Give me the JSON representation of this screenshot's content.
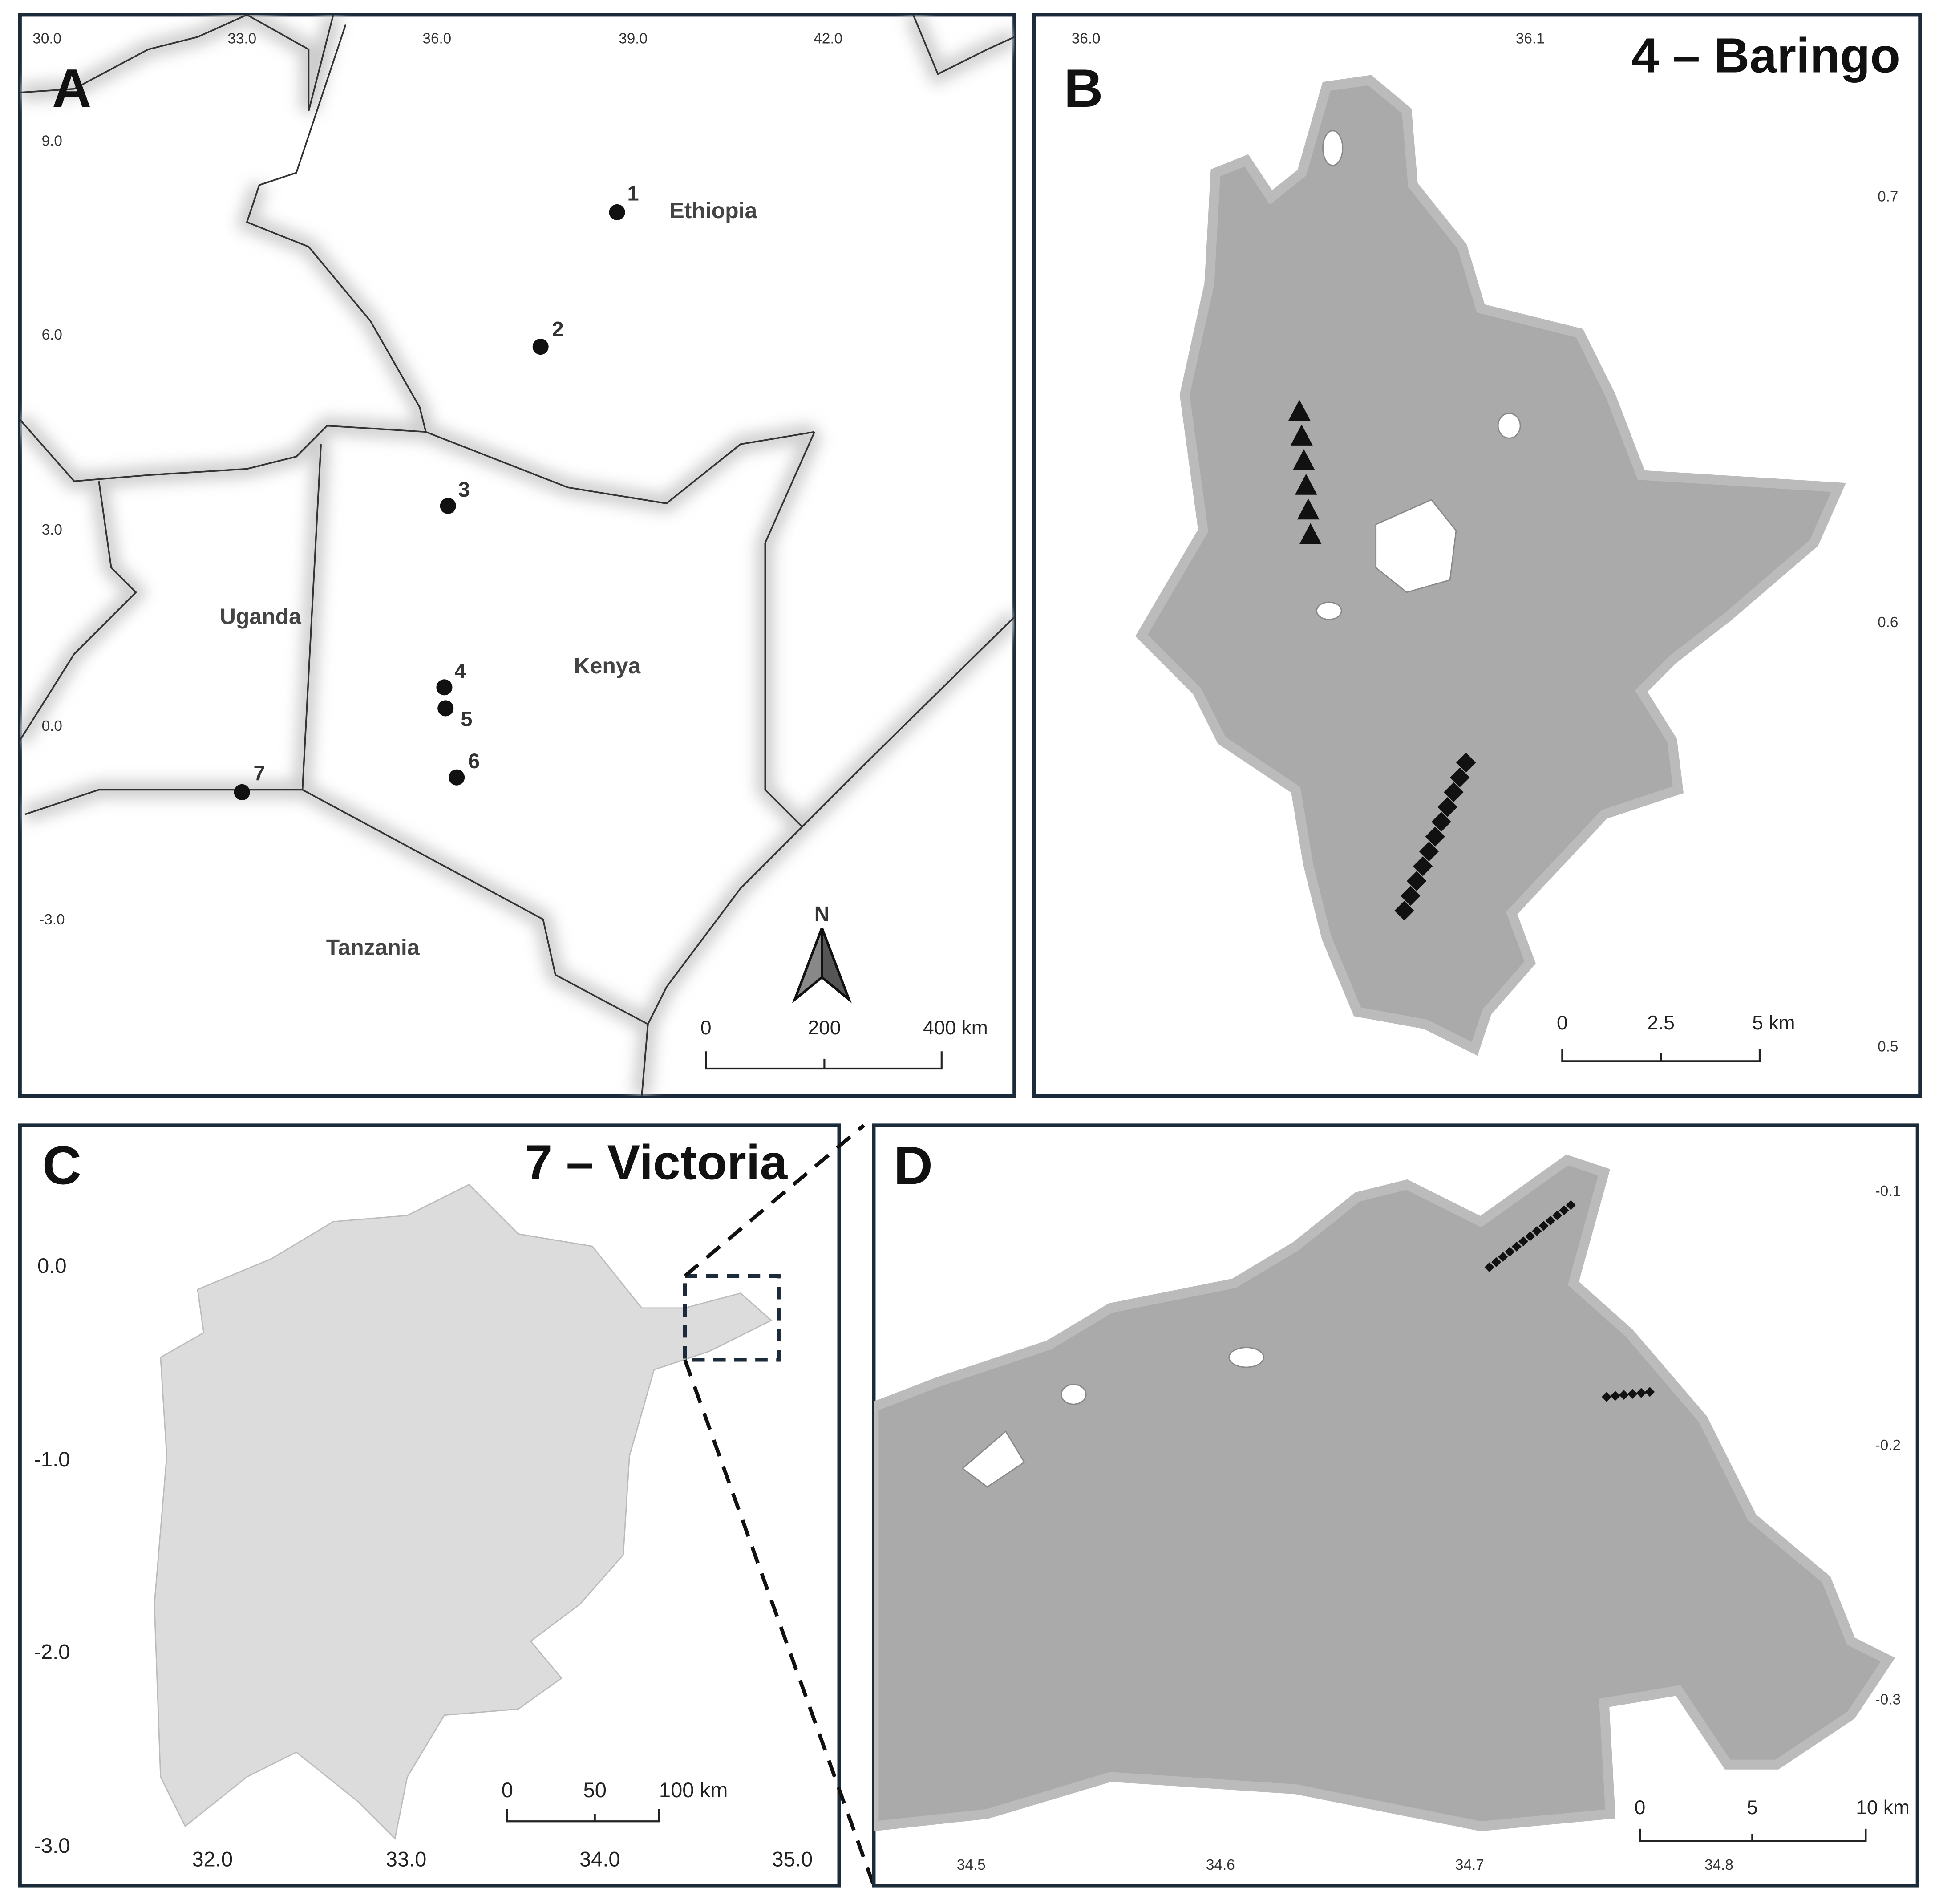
{
  "panels": [
    {
      "label": "A",
      "x_ticks": [
        "30.0",
        "33.0",
        "36.0",
        "39.0",
        "42.0"
      ],
      "y_ticks": [
        "9.0",
        "6.0",
        "3.0",
        "0.0",
        "-3.0"
      ],
      "countries": [
        "Ethiopia",
        "Uganda",
        "Kenya",
        "Tanzania"
      ],
      "sites": [
        "1",
        "2",
        "3",
        "4",
        "5",
        "6",
        "7"
      ],
      "north": "N",
      "scale_bar": [
        "0",
        "200",
        "400 km"
      ]
    },
    {
      "label": "B",
      "title": "4 – Baringo",
      "x_ticks": [
        "36.0",
        "36.1"
      ],
      "y_ticks": [
        "0.7",
        "0.6",
        "0.5"
      ],
      "scale_bar": [
        "0",
        "2.5",
        "5 km"
      ]
    },
    {
      "label": "C",
      "title": "7 – Victoria",
      "x_ticks": [
        "32.0",
        "33.0",
        "34.0",
        "35.0"
      ],
      "y_ticks": [
        "0.0",
        "-1.0",
        "-2.0",
        "-3.0"
      ],
      "scale_bar": [
        "0",
        "50",
        "100 km"
      ]
    },
    {
      "label": "D",
      "x_ticks": [
        "34.5",
        "34.6",
        "34.7",
        "34.8"
      ],
      "y_ticks": [
        "-0.1",
        "-0.2",
        "-0.3"
      ],
      "scale_bar": [
        "0",
        "5",
        "10 km"
      ]
    }
  ]
}
